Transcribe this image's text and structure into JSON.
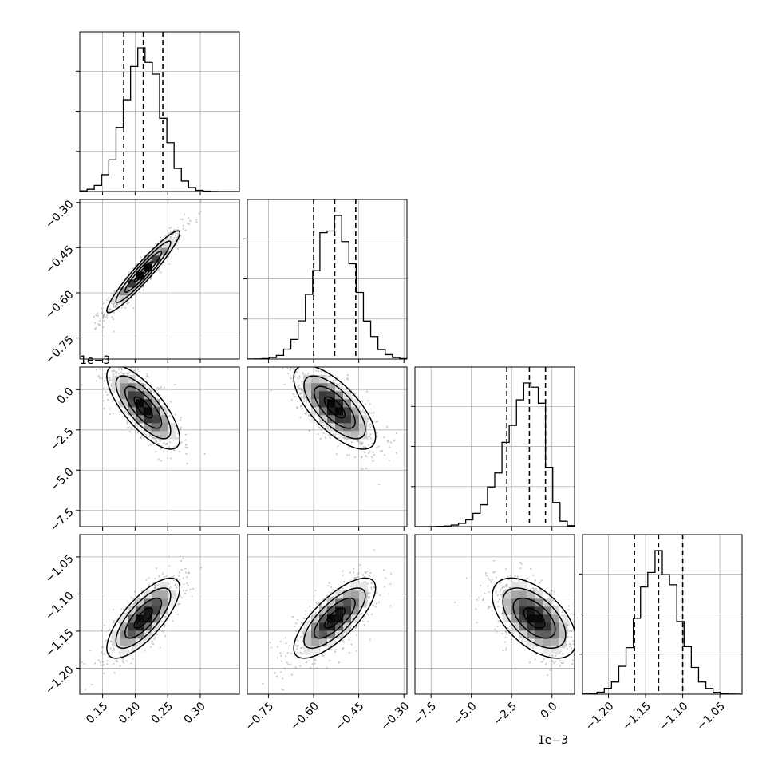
{
  "chart_data": {
    "type": "corner",
    "grid": true,
    "parameters": [
      {
        "range": [
          0.115,
          0.36
        ],
        "ticks": [
          0.15,
          0.2,
          0.25,
          0.3
        ],
        "tick_labels": [
          "0.15",
          "0.20",
          "0.25",
          "0.30"
        ],
        "offset_text": "",
        "center": 0.2125,
        "sigma": 0.028,
        "quantiles": [
          0.1825,
          0.2125,
          0.2425
        ]
      },
      {
        "range": [
          -0.82,
          -0.29
        ],
        "ticks": [
          -0.75,
          -0.6,
          -0.45,
          -0.3
        ],
        "tick_labels": [
          "−0.75",
          "−0.60",
          "−0.45",
          "−0.30"
        ],
        "offset_text": "",
        "center": -0.53,
        "sigma": 0.068,
        "quantiles": [
          -0.6,
          -0.53,
          -0.46
        ]
      },
      {
        "range": [
          -8.5,
          1.4
        ],
        "ticks": [
          -7.5,
          -5.0,
          -2.5,
          0.0
        ],
        "tick_labels": [
          "−7.5",
          "−5.0",
          "−2.5",
          "0.0"
        ],
        "offset_text": "1e−3",
        "center": -1.1,
        "sigma": 1.3,
        "quantiles": [
          -2.8,
          -1.4,
          -0.4
        ]
      },
      {
        "range": [
          -1.235,
          -1.02
        ],
        "ticks": [
          -1.2,
          -1.15,
          -1.1,
          -1.05
        ],
        "tick_labels": [
          "−1.20",
          "−1.15",
          "−1.10",
          "−1.05"
        ],
        "offset_text": "",
        "center": -1.1325,
        "sigma": 0.027,
        "quantiles": [
          -1.165,
          -1.1325,
          -1.1
        ]
      }
    ],
    "correlations": [
      {
        "pair": [
          1,
          0
        ],
        "rho": 0.95
      },
      {
        "pair": [
          2,
          0
        ],
        "rho": -0.75
      },
      {
        "pair": [
          2,
          1
        ],
        "rho": -0.7
      },
      {
        "pair": [
          3,
          0
        ],
        "rho": 0.75
      },
      {
        "pair": [
          3,
          1
        ],
        "rho": 0.75
      },
      {
        "pair": [
          3,
          2
        ],
        "rho": -0.55
      }
    ],
    "contour_levels_sigma": [
      0.5,
      1.0,
      1.5,
      2.0
    ]
  }
}
